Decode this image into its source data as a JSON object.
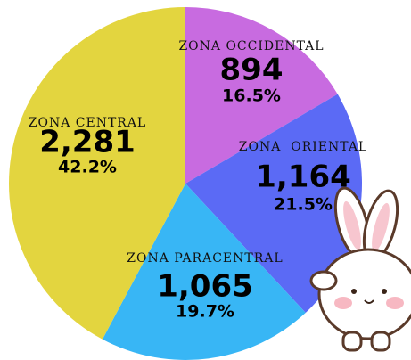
{
  "chart_data": {
    "type": "pie",
    "categories": [
      "ZONA OCCIDENTAL",
      "ZONA  ORIENTAL",
      "ZONA PARACENTRAL",
      "ZONA CENTRAL"
    ],
    "values": [
      894,
      1164,
      1065,
      2281
    ],
    "value_labels": [
      "894",
      "1,164",
      "1,065",
      "2,281"
    ],
    "percent_labels": [
      "16.5%",
      "21.5%",
      "19.7%",
      "42.2%"
    ],
    "colors": [
      "#c86be0",
      "#5b6af5",
      "#38b6f5",
      "#e3d53f"
    ]
  }
}
